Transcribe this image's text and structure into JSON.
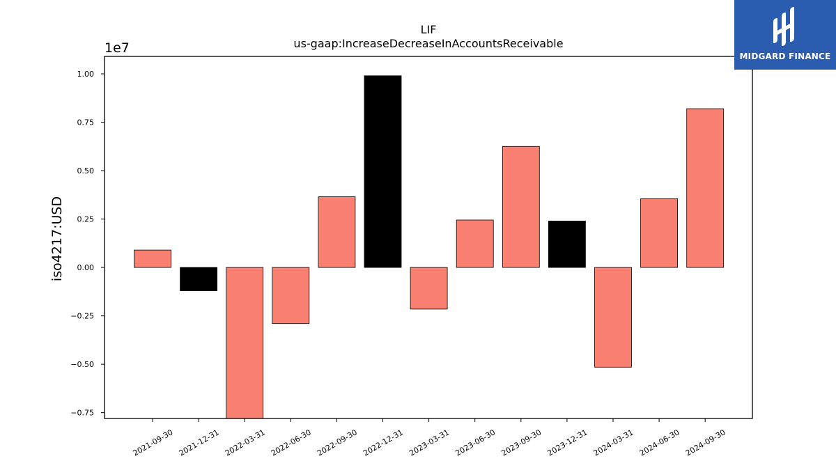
{
  "brand": {
    "name": "MIDGARD FINANCE",
    "color": "#2a5cb0",
    "icon": "midgard-logo-icon"
  },
  "chart_data": {
    "type": "bar",
    "title": "LIF",
    "subtitle": "us-gaap:IncreaseDecreaseInAccountsReceivable",
    "xlabel": "",
    "ylabel": "iso4217:USD",
    "y_offset_label": "1e7",
    "ylim": [
      -0.78,
      1.09
    ],
    "yticks": [
      -0.75,
      -0.5,
      -0.25,
      0.0,
      0.25,
      0.5,
      0.75,
      1.0
    ],
    "ytick_labels": [
      "−0.75",
      "−0.50",
      "−0.25",
      "0.00",
      "0.25",
      "0.50",
      "0.75",
      "1.00"
    ],
    "grid": false,
    "categories": [
      "2021-09-30",
      "2021-12-31",
      "2022-03-31",
      "2022-06-30",
      "2022-09-30",
      "2022-12-31",
      "2023-03-31",
      "2023-06-30",
      "2023-09-30",
      "2023-12-31",
      "2024-03-31",
      "2024-06-30",
      "2024-09-30"
    ],
    "values": [
      0.09,
      -0.12,
      -0.78,
      -0.29,
      0.365,
      0.99,
      -0.215,
      0.245,
      0.625,
      0.24,
      -0.515,
      0.355,
      0.82
    ],
    "colors": [
      "#fa8072",
      "#000000",
      "#fa8072",
      "#fa8072",
      "#fa8072",
      "#000000",
      "#fa8072",
      "#fa8072",
      "#fa8072",
      "#000000",
      "#fa8072",
      "#fa8072",
      "#fa8072"
    ]
  }
}
